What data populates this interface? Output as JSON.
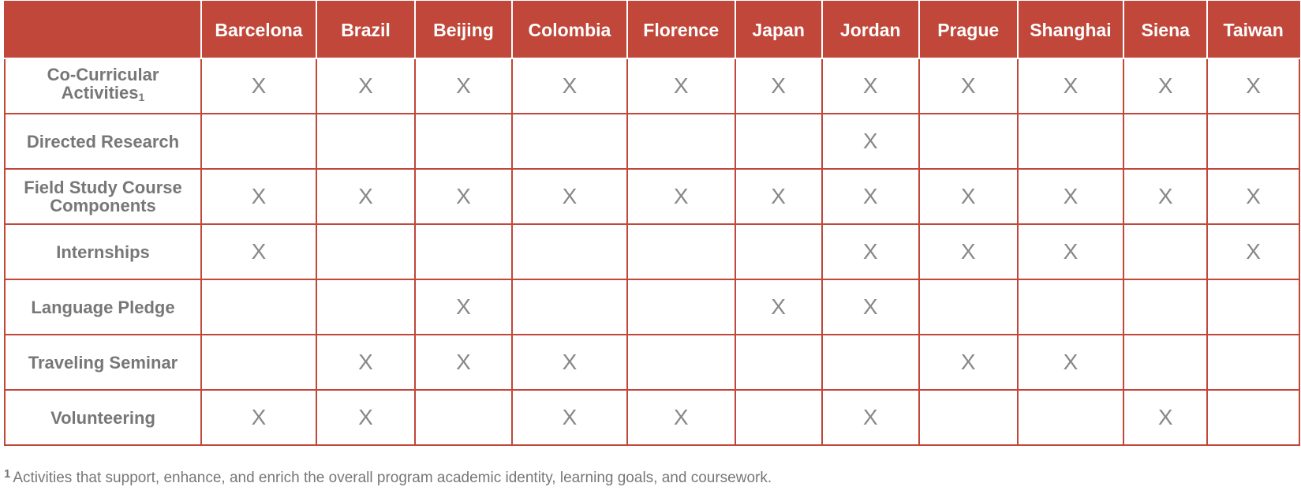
{
  "table": {
    "corner": "",
    "columns": [
      "Barcelona",
      "Brazil",
      "Beijing",
      "Colombia",
      "Florence",
      "Japan",
      "Jordan",
      "Prague",
      "Shanghai",
      "Siena",
      "Taiwan"
    ],
    "rows": [
      {
        "label": "Co-Curricular Activities",
        "footnote_ref": "1",
        "cells": [
          "X",
          "X",
          "X",
          "X",
          "X",
          "X",
          "X",
          "X",
          "X",
          "X",
          "X"
        ]
      },
      {
        "label": "Directed Research",
        "footnote_ref": "",
        "cells": [
          "",
          "",
          "",
          "",
          "",
          "",
          "X",
          "",
          "",
          "",
          ""
        ]
      },
      {
        "label": "Field Study Course Components",
        "footnote_ref": "",
        "cells": [
          "X",
          "X",
          "X",
          "X",
          "X",
          "X",
          "X",
          "X",
          "X",
          "X",
          "X"
        ]
      },
      {
        "label": "Internships",
        "footnote_ref": "",
        "cells": [
          "X",
          "",
          "",
          "",
          "",
          "",
          "X",
          "X",
          "X",
          "",
          "X"
        ]
      },
      {
        "label": "Language Pledge",
        "footnote_ref": "",
        "cells": [
          "",
          "",
          "X",
          "",
          "",
          "X",
          "X",
          "",
          "",
          "",
          ""
        ]
      },
      {
        "label": "Traveling Seminar",
        "footnote_ref": "",
        "cells": [
          "",
          "X",
          "X",
          "X",
          "",
          "",
          "",
          "X",
          "X",
          "",
          ""
        ]
      },
      {
        "label": "Volunteering",
        "footnote_ref": "",
        "cells": [
          "X",
          "X",
          "",
          "X",
          "X",
          "",
          "X",
          "",
          "",
          "X",
          ""
        ]
      }
    ]
  },
  "footnote": {
    "number": "1",
    "text": "Activities that support, enhance, and enrich the overall program academic identity, learning goals, and coursework."
  },
  "colors": {
    "accent": "#c0473a",
    "text_gray": "#777777",
    "mark_gray": "#888888"
  }
}
